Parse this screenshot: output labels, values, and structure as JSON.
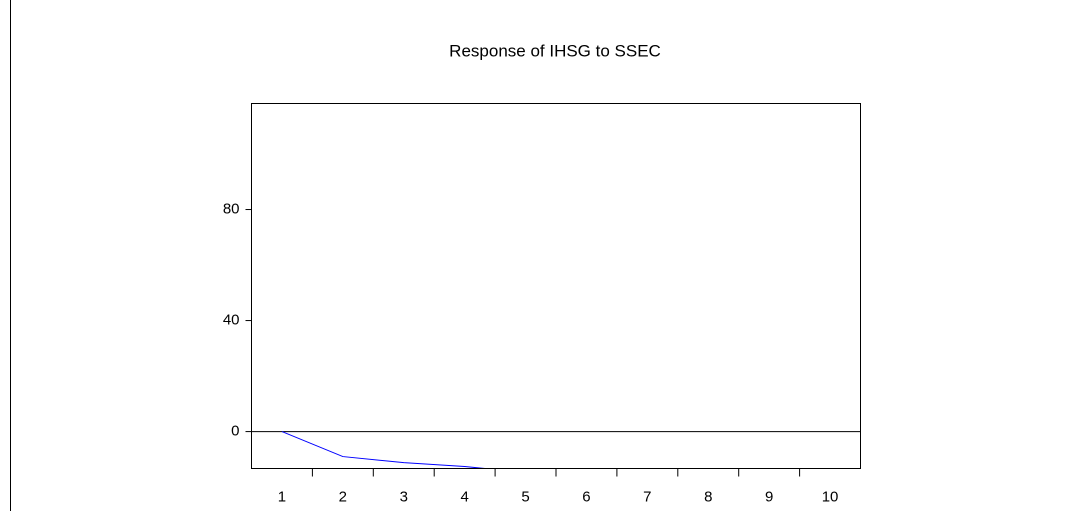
{
  "chart_data": {
    "type": "line",
    "title": "Response of IHSG to SSEC",
    "categories": [
      "1",
      "2",
      "3",
      "4",
      "5",
      "6",
      "7",
      "8",
      "9",
      "10"
    ],
    "series": [
      {
        "color": "#0000ff",
        "values": [
          0,
          -9,
          -11.2,
          -12.6,
          -14.7,
          null,
          null,
          null,
          null,
          null
        ]
      }
    ],
    "ylim": [
      -13.3,
      118.2
    ],
    "yticks": [
      0,
      40,
      80
    ]
  }
}
